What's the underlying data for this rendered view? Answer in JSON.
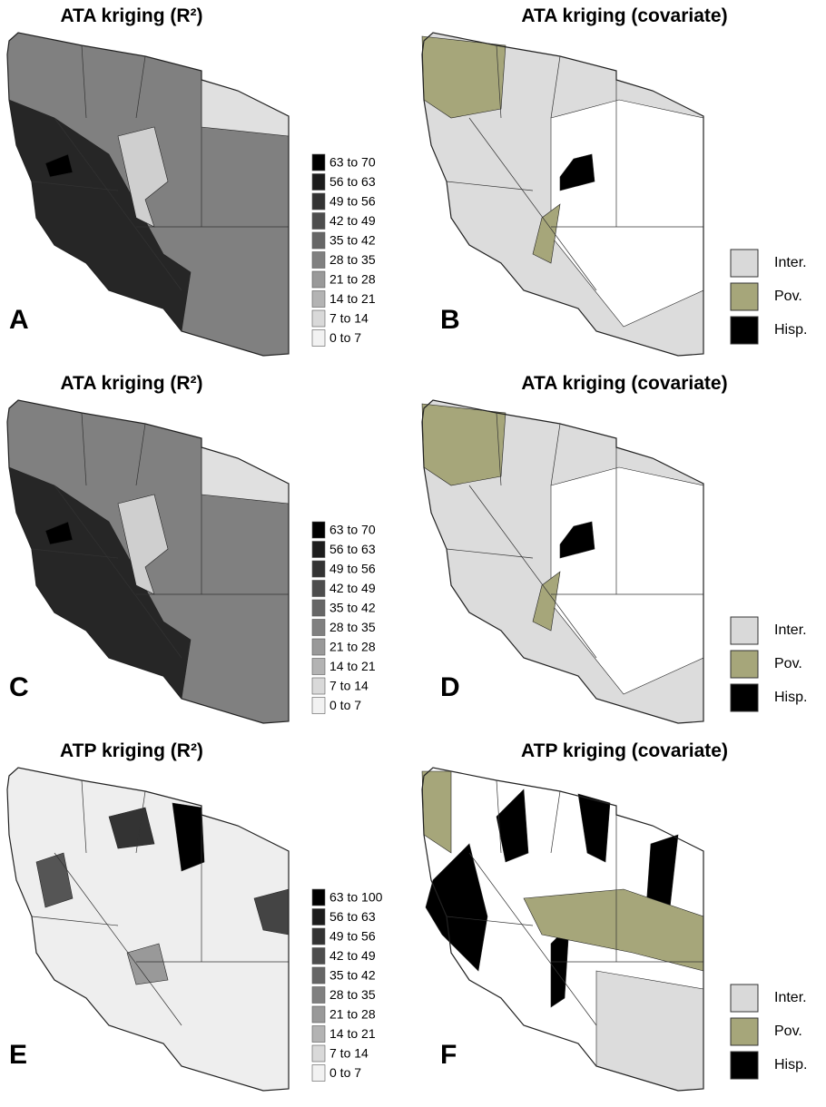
{
  "panels": [
    {
      "letter": "A",
      "title": "ATA kriging (R²)",
      "legend": [
        {
          "label": "63 to 70",
          "color": "#000000"
        },
        {
          "label": "56 to 63",
          "color": "#1c1c1c"
        },
        {
          "label": "49 to 56",
          "color": "#333333"
        },
        {
          "label": "42 to 49",
          "color": "#4d4d4d"
        },
        {
          "label": "35 to 42",
          "color": "#666666"
        },
        {
          "label": "28 to 35",
          "color": "#808080"
        },
        {
          "label": "21 to 28",
          "color": "#999999"
        },
        {
          "label": "14 to 21",
          "color": "#b3b3b3"
        },
        {
          "label": "7 to 14",
          "color": "#d9d9d9"
        },
        {
          "label": "0 to 7",
          "color": "#f2f2f2"
        }
      ]
    },
    {
      "letter": "B",
      "title": "ATA kriging (covariate)",
      "legend": [
        {
          "label": "Inter.",
          "color": "#d9d9d9"
        },
        {
          "label": "Pov.",
          "color": "#a6a67a"
        },
        {
          "label": "Hisp.",
          "color": "#000000"
        }
      ]
    },
    {
      "letter": "C",
      "title": "ATA kriging (R²)",
      "legend": [
        {
          "label": "63 to 70",
          "color": "#000000"
        },
        {
          "label": "56 to 63",
          "color": "#1c1c1c"
        },
        {
          "label": "49 to 56",
          "color": "#333333"
        },
        {
          "label": "42 to 49",
          "color": "#4d4d4d"
        },
        {
          "label": "35 to 42",
          "color": "#666666"
        },
        {
          "label": "28 to 35",
          "color": "#808080"
        },
        {
          "label": "21 to 28",
          "color": "#999999"
        },
        {
          "label": "14 to 21",
          "color": "#b3b3b3"
        },
        {
          "label": "7 to 14",
          "color": "#d9d9d9"
        },
        {
          "label": "0 to 7",
          "color": "#f2f2f2"
        }
      ]
    },
    {
      "letter": "D",
      "title": "ATA kriging (covariate)",
      "legend": [
        {
          "label": "Inter.",
          "color": "#d9d9d9"
        },
        {
          "label": "Pov.",
          "color": "#a6a67a"
        },
        {
          "label": "Hisp.",
          "color": "#000000"
        }
      ]
    },
    {
      "letter": "E",
      "title": "ATP kriging (R²)",
      "legend": [
        {
          "label": "63 to 100",
          "color": "#000000"
        },
        {
          "label": "56 to 63",
          "color": "#1c1c1c"
        },
        {
          "label": "49 to 56",
          "color": "#333333"
        },
        {
          "label": "42 to 49",
          "color": "#4d4d4d"
        },
        {
          "label": "35 to 42",
          "color": "#666666"
        },
        {
          "label": "28 to 35",
          "color": "#808080"
        },
        {
          "label": "21 to 28",
          "color": "#999999"
        },
        {
          "label": "14 to 21",
          "color": "#b3b3b3"
        },
        {
          "label": "7 to 14",
          "color": "#d9d9d9"
        },
        {
          "label": "0 to 7",
          "color": "#f2f2f2"
        }
      ]
    },
    {
      "letter": "F",
      "title": "ATP kriging (covariate)",
      "legend": [
        {
          "label": "Inter.",
          "color": "#d9d9d9"
        },
        {
          "label": "Pov.",
          "color": "#a6a67a"
        },
        {
          "label": "Hisp.",
          "color": "#000000"
        }
      ]
    }
  ]
}
